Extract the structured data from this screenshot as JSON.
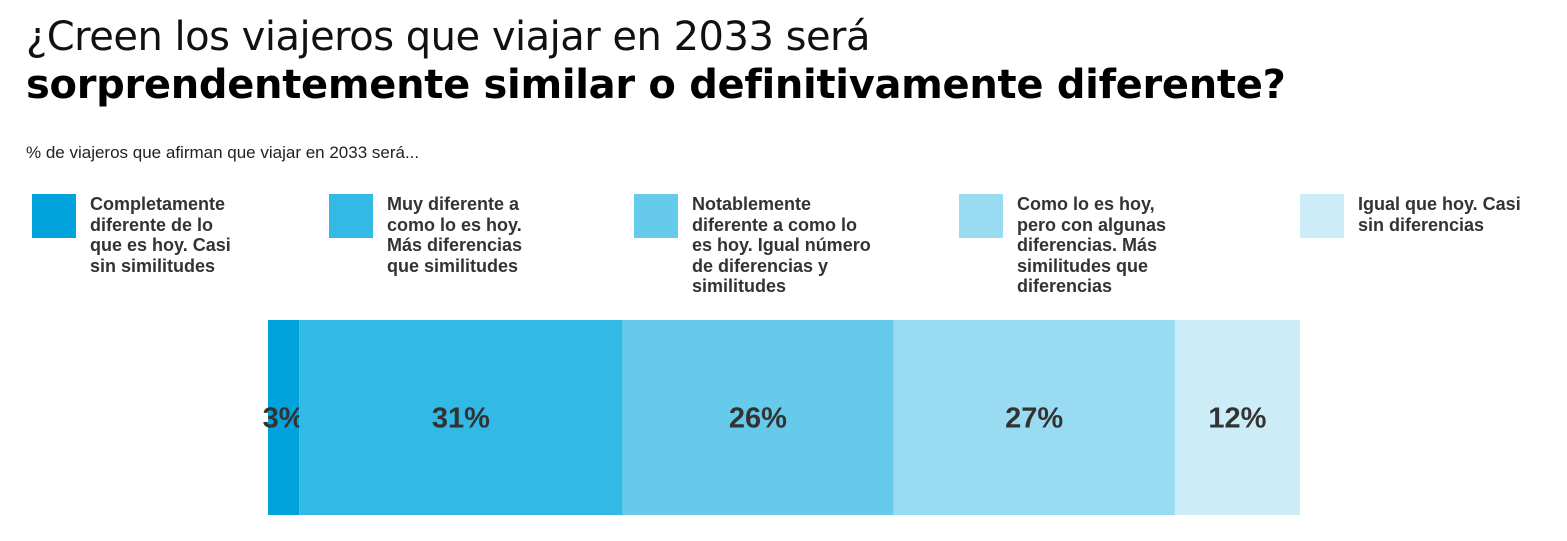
{
  "chart_data": {
    "type": "bar",
    "orientation": "horizontal-stacked-100",
    "title_line1": "¿Creen los viajeros que viajar en 2033 será",
    "title_line2": "sorprendentemente similar o definitivamente diferente?",
    "subtitle": "% de viajeros que afirman que viajar en 2033 será...",
    "legend_position": "top",
    "series": [
      {
        "name": "Completamente\ndiferente de lo\nque es hoy. Casi\nsin similitudes",
        "value": 3,
        "label": "3%",
        "color": "#00A3DB"
      },
      {
        "name": "Muy diferente a\ncomo lo es hoy.\nMás diferencias\nque similitudes",
        "value": 31,
        "label": "31%",
        "color": "#33B9E5"
      },
      {
        "name": "Notablemente\ndiferente a como lo\nes hoy. Igual número\nde diferencias y\nsimilitudes",
        "value": 26,
        "label": "26%",
        "color": "#66CAEB"
      },
      {
        "name": "Como lo es hoy,\npero con algunas\ndiferencias. Más\nsimilitudes que\ndiferencias",
        "value": 27,
        "label": "27%",
        "color": "#99DCF2"
      },
      {
        "name": "Igual que hoy. Casi\nsin diferencias",
        "value": 12,
        "label": "12%",
        "color": "#CCEDF8"
      }
    ]
  }
}
